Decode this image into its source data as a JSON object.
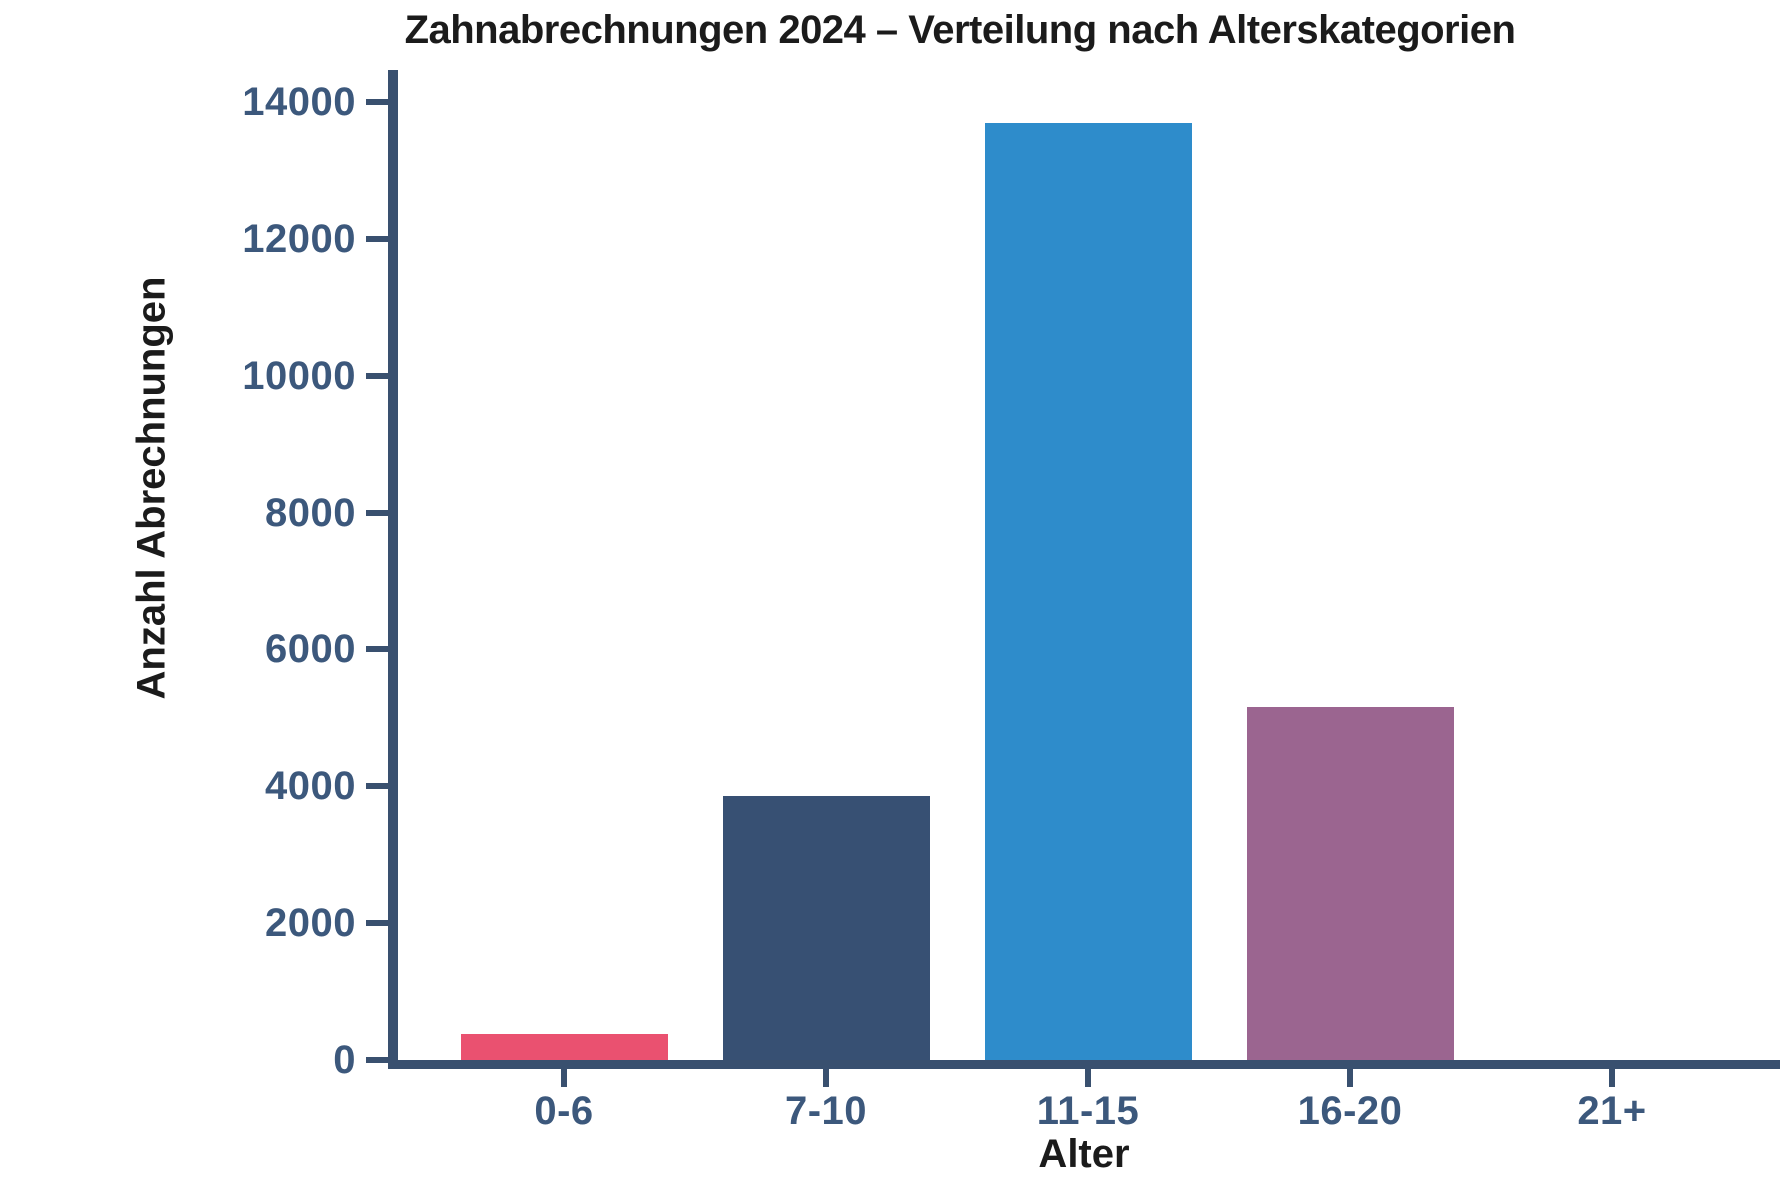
{
  "chart_data": {
    "type": "bar",
    "title": "Zahnabrechnungen 2024 – Verteilung nach Alterskategorien",
    "xlabel": "Alter",
    "ylabel": "Anzahl Abrechnungen",
    "categories": [
      "0-6",
      "7-10",
      "11-15",
      "16-20",
      "21+"
    ],
    "values": [
      380,
      3860,
      13700,
      5160,
      0
    ],
    "bar_colors": [
      "#EA5170",
      "#375073",
      "#2E8CCB",
      "#9B6590",
      null
    ],
    "ylim": [
      0,
      14000
    ],
    "yticks": [
      0,
      2000,
      4000,
      6000,
      8000,
      10000,
      12000,
      14000
    ],
    "grid": false,
    "legend": null,
    "axis_color": "#39506F",
    "tick_label_color": "#3C587C",
    "text_color": "#1B1B1B",
    "background_color": "#FFFFFF"
  }
}
